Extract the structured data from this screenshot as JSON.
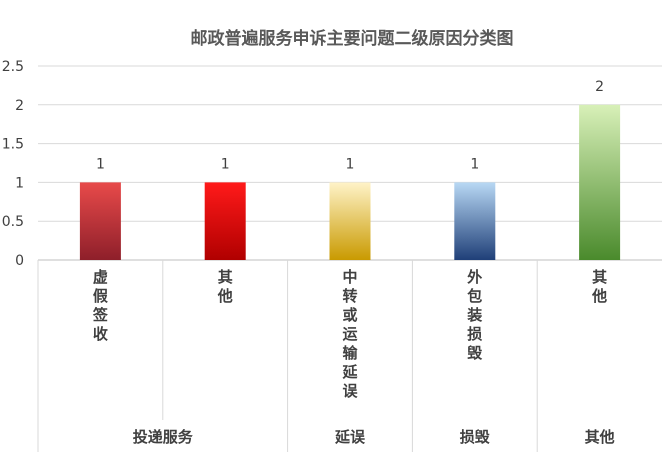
{
  "chart_data": {
    "type": "bar",
    "title": "邮政普遍服务申诉主要问题二级原因分类图",
    "ylim": [
      0,
      2.5
    ],
    "yticks": [
      "0",
      "0.5",
      "1",
      "1.5",
      "2",
      "2.5"
    ],
    "grid": true,
    "categories": [
      "虚假签收",
      "其他",
      "中转或运输延误",
      "外包装损毁",
      "其他"
    ],
    "values": [
      1,
      1,
      1,
      1,
      2
    ],
    "data_labels": [
      "1",
      "1",
      "1",
      "1",
      "2"
    ],
    "groups": [
      {
        "label": "投递服务",
        "span": [
          0,
          1
        ]
      },
      {
        "label": "延误",
        "span": [
          2,
          2
        ]
      },
      {
        "label": "损毁",
        "span": [
          3,
          3
        ]
      },
      {
        "label": "其他",
        "span": [
          4,
          4
        ]
      }
    ],
    "bar_colors": [
      {
        "top": "#e84a4a",
        "bottom": "#8e1f2a"
      },
      {
        "top": "#ff1a1a",
        "bottom": "#b00000"
      },
      {
        "top": "#fff3c8",
        "bottom": "#c99a00"
      },
      {
        "top": "#b8d8f4",
        "bottom": "#1f3f78"
      },
      {
        "top": "#d8f0b8",
        "bottom": "#4a8a2c"
      }
    ]
  }
}
